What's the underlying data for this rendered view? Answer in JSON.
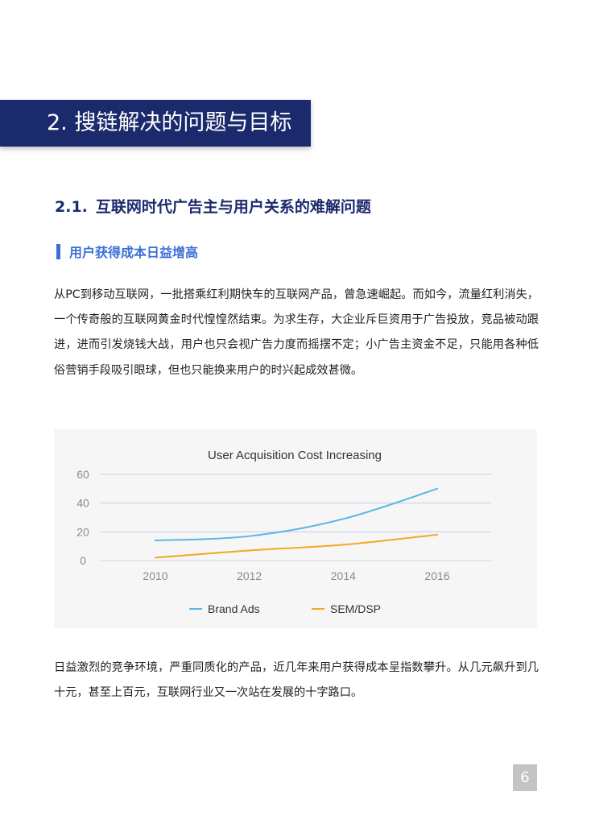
{
  "section": {
    "title": "2.  搜链解决的问题与目标"
  },
  "subsection": {
    "number": "2.1.",
    "title": "互联网时代广告主与用户关系的难解问题"
  },
  "topic": {
    "label": "用户获得成本日益增高"
  },
  "paragraphs": [
    "从PC到移动互联网，一批搭乘红利期快车的互联网产品，曾急速崛起。而如今，流量红利消失，一个传奇般的互联网黄金时代惶惶然结束。为求生存，大企业斥巨资用于广告投放，竞品被动跟进，进而引发烧钱大战，用户也只会视广告力度而摇摆不定；小广告主资金不足，只能用各种低俗营销手段吸引眼球，但也只能换来用户的时兴起成效甚微。",
    "日益激烈的竞争环境，严重同质化的产品，近几年来用户获得成本呈指数攀升。从几元飙升到几十元，甚至上百元，互联网行业又一次站在发展的十字路口。"
  ],
  "chart_data": {
    "type": "line",
    "title": "User Acquisition Cost Increasing",
    "x": [
      2010,
      2012,
      2014,
      2016
    ],
    "xticks": [
      "2010",
      "2012",
      "2014",
      "2016"
    ],
    "yticks": [
      "0",
      "20",
      "40",
      "60"
    ],
    "ylim": [
      0,
      60
    ],
    "xlabel": "",
    "ylabel": "",
    "grid": true,
    "legend_position": "bottom",
    "series": [
      {
        "name": "Brand Ads",
        "color": "#5bb5e8",
        "values": [
          14,
          17,
          29,
          50
        ]
      },
      {
        "name": "SEM/DSP",
        "color": "#f5a623",
        "values": [
          2,
          7,
          11,
          18
        ]
      }
    ]
  },
  "page": {
    "number": "6"
  }
}
